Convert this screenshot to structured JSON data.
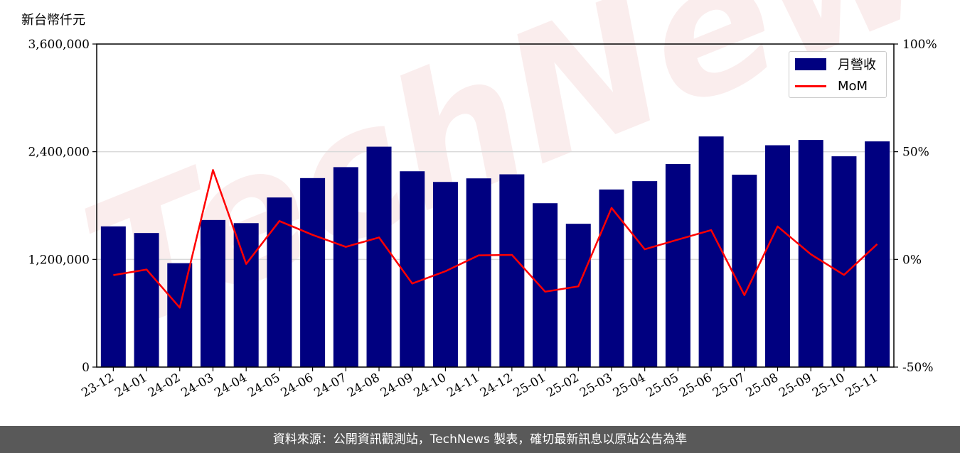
{
  "unit_label": "新台幣仟元",
  "watermark_text": "TechNews",
  "footer_text": "資料來源：公開資訊觀測站，TechNews 製表，確切最新訊息以原站公告為準",
  "colors": {
    "bar": "#000080",
    "line": "#ff0000",
    "grid": "#d9d9d9",
    "footer_bg": "#595959"
  },
  "chart_data": {
    "type": "bar",
    "categories": [
      "23-12",
      "24-01",
      "24-02",
      "24-03",
      "24-04",
      "24-05",
      "24-06",
      "24-07",
      "24-08",
      "24-09",
      "24-10",
      "24-11",
      "24-12",
      "25-01",
      "25-02",
      "25-03",
      "25-04",
      "25-05",
      "25-06",
      "25-07",
      "25-08",
      "25-09",
      "25-10",
      "25-11"
    ],
    "series": [
      {
        "name": "月營收",
        "axis": "left",
        "type": "bar",
        "values": [
          1568000,
          1494000,
          1158000,
          1639000,
          1604000,
          1890000,
          2106000,
          2228000,
          2456000,
          2182000,
          2063000,
          2103000,
          2148000,
          1826000,
          1597000,
          1979000,
          2072000,
          2263000,
          2570000,
          2144000,
          2472000,
          2531000,
          2349000,
          2515000
        ]
      },
      {
        "name": "MoM",
        "axis": "right",
        "type": "line",
        "values": [
          -7.3,
          -4.7,
          -22.4,
          41.5,
          -2.1,
          17.8,
          11.4,
          5.8,
          10.2,
          -11.2,
          -5.5,
          1.9,
          2.1,
          -15.0,
          -12.5,
          23.9,
          4.7,
          9.2,
          13.6,
          -16.6,
          15.3,
          2.4,
          -7.2,
          7.1
        ]
      }
    ],
    "y_left": {
      "ylim": [
        0,
        3600000
      ],
      "ticks": [
        "0",
        "1,200,000",
        "2,400,000",
        "3,600,000"
      ]
    },
    "y_right": {
      "ylim": [
        -50,
        100
      ],
      "ticks": [
        "-50%",
        "0%",
        "50%",
        "100%"
      ]
    },
    "grid": "horizontal",
    "legend_position": "top-right"
  }
}
